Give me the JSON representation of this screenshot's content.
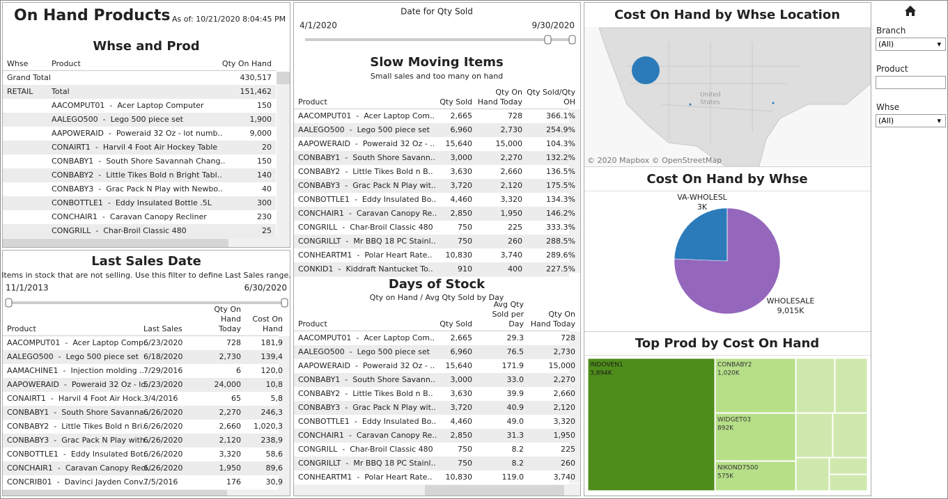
{
  "header": {
    "title": "On Hand Products",
    "as_of": "As of: 10/21/2020 8:04:45 PM"
  },
  "whse_prod": {
    "title": "Whse and Prod",
    "columns": [
      "Whse",
      "Product",
      "Qty On Hand"
    ],
    "rows": [
      [
        "Grand Total",
        null,
        "430,517"
      ],
      [
        "RETAIL",
        "Total",
        "151,462"
      ],
      [
        null,
        "AACOMPUT01  -  Acer Laptop Computer",
        "150"
      ],
      [
        null,
        "AALEGO500  -  Lego 500 piece set",
        "1,900"
      ],
      [
        null,
        "AAPOWERAID  -  Poweraid 32 Oz - lot numb..",
        "9,000"
      ],
      [
        null,
        "CONAIRT1  -  Harvil 4 Foot Air Hockey Table",
        "20"
      ],
      [
        null,
        "CONBABY1  -  South Shore Savannah Chang..",
        "150"
      ],
      [
        null,
        "CONBABY2  -  Little Tikes Bold n Bright Tabl..",
        "140"
      ],
      [
        null,
        "CONBABY3  -  Grac Pack N Play with Newbo..",
        "40"
      ],
      [
        null,
        "CONBOTTLE1  -  Eddy Insulated Bottle .5L",
        "300"
      ],
      [
        null,
        "CONCHAIR1  -  Caravan Canopy Recliner",
        "230"
      ],
      [
        null,
        "CONGRILL  -  Char-Broil Classic 480",
        "25"
      ]
    ]
  },
  "date_filter": {
    "label": "Date for Qty Sold",
    "start": "4/1/2020",
    "end": "9/30/2020"
  },
  "slow_moving": {
    "title": "Slow Moving Items",
    "subtitle": "Small sales and too many on hand",
    "columns": [
      "Product",
      "Qty Sold",
      "Qty On Hand Today",
      "Qty Sold/Qty OH"
    ],
    "rows": [
      [
        "AACOMPUT01  -  Acer Laptop Com..",
        "2,665",
        "728",
        "366.1%"
      ],
      [
        "AALEGO500  -  Lego 500 piece set",
        "6,960",
        "2,730",
        "254.9%"
      ],
      [
        "AAPOWERAID  -  Poweraid 32 Oz - ..",
        "15,640",
        "15,000",
        "104.3%"
      ],
      [
        "CONBABY1  -  South Shore Savann..",
        "3,000",
        "2,270",
        "132.2%"
      ],
      [
        "CONBABY2  -  Little Tikes Bold n B..",
        "3,630",
        "2,660",
        "136.5%"
      ],
      [
        "CONBABY3  -  Grac Pack N Play wit..",
        "3,720",
        "2,120",
        "175.5%"
      ],
      [
        "CONBOTTLE1  -  Eddy Insulated Bo..",
        "4,460",
        "3,320",
        "134.3%"
      ],
      [
        "CONCHAIR1  -  Caravan Canopy Re..",
        "2,850",
        "1,950",
        "146.2%"
      ],
      [
        "CONGRILL  -  Char-Broil Classic 480",
        "750",
        "225",
        "333.3%"
      ],
      [
        "CONGRILLT  -  Mr BBQ 18 PC Stainl..",
        "750",
        "260",
        "288.5%"
      ],
      [
        "CONHEARTM1  -  Polar Heart Rate..",
        "10,830",
        "3,740",
        "289.6%"
      ],
      [
        "CONKID1  -  Kiddraft Nantucket To..",
        "910",
        "400",
        "227.5%"
      ]
    ]
  },
  "days_of_stock": {
    "title": "Days of Stock",
    "subtitle": "Qty on Hand / Avg Qty Sold by Day",
    "columns": [
      "Product",
      "Qty Sold",
      "Avg Qty Sold per Day",
      "Qty On Hand Today"
    ],
    "rows": [
      [
        "AACOMPUT01  -  Acer Laptop Com..",
        "2,665",
        "29.3",
        "728"
      ],
      [
        "AALEGO500  -  Lego 500 piece set",
        "6,960",
        "76.5",
        "2,730"
      ],
      [
        "AAPOWERAID  -  Poweraid 32 Oz - ..",
        "15,640",
        "171.9",
        "15,000"
      ],
      [
        "CONBABY1  -  South Shore Savann..",
        "3,000",
        "33.0",
        "2,270"
      ],
      [
        "CONBABY2  -  Little Tikes Bold n B..",
        "3,630",
        "39.9",
        "2,660"
      ],
      [
        "CONBABY3  -  Grac Pack N Play wit..",
        "3,720",
        "40.9",
        "2,120"
      ],
      [
        "CONBOTTLE1  -  Eddy Insulated Bo..",
        "4,460",
        "49.0",
        "3,320"
      ],
      [
        "CONCHAIR1  -  Caravan Canopy Re..",
        "2,850",
        "31.3",
        "1,950"
      ],
      [
        "CONGRILL  -  Char-Broil Classic 480",
        "750",
        "8.2",
        "225"
      ],
      [
        "CONGRILLT  -  Mr BBQ 18 PC Stainl..",
        "750",
        "8.2",
        "260"
      ],
      [
        "CONHEARTM1  -  Polar Heart Rate..",
        "10,830",
        "119.0",
        "3,740"
      ]
    ]
  },
  "last_sales": {
    "title": "Last Sales Date",
    "subtitle": "Items in stock that are not selling. Use this filter to define Last Sales range.",
    "start": "11/1/2013",
    "end": "6/30/2020",
    "columns": [
      "Product",
      "Last Sales",
      "Qty On Hand Today",
      "Cost On Hand"
    ],
    "rows": [
      [
        "AACOMPUT01  -  Acer Laptop Comp..",
        "6/23/2020",
        "728",
        "181,9"
      ],
      [
        "AALEGO500  -  Lego 500 piece set",
        "6/18/2020",
        "2,730",
        "139,4"
      ],
      [
        "AAMACHINE1  -  Injection molding ..",
        "7/29/2016",
        "6",
        "120,0"
      ],
      [
        "AAPOWERAID  -  Poweraid 32 Oz - lo..",
        "5/23/2020",
        "24,000",
        "10,8"
      ],
      [
        "CONAIRT1  -  Harvil 4 Foot Air Hock..",
        "3/4/2016",
        "65",
        "5,8"
      ],
      [
        "CONBABY1  -  South Shore Savanna..",
        "6/26/2020",
        "2,270",
        "246,3"
      ],
      [
        "CONBABY2  -  Little Tikes Bold n Bri..",
        "6/26/2020",
        "2,660",
        "1,020,3"
      ],
      [
        "CONBABY3  -  Grac Pack N Play with..",
        "6/26/2020",
        "2,120",
        "238,9"
      ],
      [
        "CONBOTTLE1  -  Eddy Insulated Bot..",
        "6/26/2020",
        "3,320",
        "58,6"
      ],
      [
        "CONCHAIR1  -  Caravan Canopy Recl..",
        "6/26/2020",
        "1,950",
        "89,6"
      ],
      [
        "CONCRIB01  -  Davinci Jayden Conv..",
        "7/5/2016",
        "176",
        "30,9"
      ]
    ]
  },
  "map": {
    "title": "Cost On Hand by Whse Location",
    "label_lines": [
      "United",
      "States"
    ],
    "attribution": "© 2020 Mapbox  © OpenStreetMap"
  },
  "pie": {
    "title": "Cost On Hand by Whse",
    "slices": [
      {
        "name": "WHOLESALE",
        "value": 9015,
        "value_label": "9,015K",
        "color": "#9467bd"
      },
      {
        "name": null,
        "value": 2900,
        "color": "#2b7bba"
      },
      {
        "name": "VA-WHOLESL",
        "value": 3,
        "value_label": "3K",
        "color": "#4e8f2e"
      }
    ]
  },
  "treemap": {
    "title": "Top Prod by Cost On Hand",
    "cells": [
      {
        "name": "INDOVEN1",
        "value": 3894,
        "value_label": "3,894K",
        "color": "#4e8d1b"
      },
      {
        "name": "CONBABY2",
        "value": 1020,
        "value_label": "1,020K",
        "color": "#b6df88"
      },
      {
        "name": "WIDGET03",
        "value": 892,
        "value_label": "892K",
        "color": "#b6df88"
      },
      {
        "name": "NIKOND7500",
        "value": 575,
        "value_label": "575K",
        "color": "#b6df88"
      },
      {
        "name": null,
        "value": 483,
        "color": "#cfe8ad"
      },
      {
        "name": null,
        "value": 404,
        "color": "#cfe8ad"
      },
      {
        "name": null,
        "value": 369,
        "color": "#cfe8ad"
      },
      {
        "name": null,
        "value": 348,
        "color": "#cfe8ad"
      },
      {
        "name": null,
        "value": 249,
        "color": "#cfe8ad"
      },
      {
        "name": null,
        "value": 140,
        "color": "#cfe8ad"
      },
      {
        "name": null,
        "value": 140,
        "color": "#cfe8ad"
      }
    ]
  },
  "filters": [
    {
      "label": "Branch",
      "value": "(All)"
    },
    {
      "label": "Product"
    },
    {
      "label": "Whse",
      "value": "(All)"
    }
  ]
}
